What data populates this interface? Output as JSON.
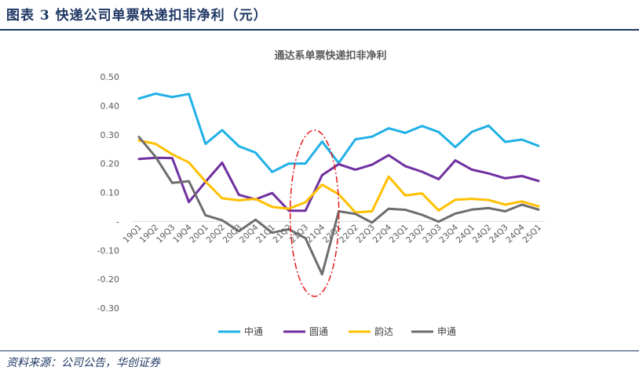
{
  "header": {
    "title": "图表 3   快递公司单票快递扣非净利（元）"
  },
  "footer": {
    "source": "资料来源：公司公告，华创证券"
  },
  "chart_data": {
    "type": "line",
    "title": "通达系单票快递扣非净利",
    "xlabel": "",
    "ylabel": "",
    "ylim": [
      -0.3,
      0.5
    ],
    "y_ticks": [
      0.5,
      0.4,
      0.3,
      0.2,
      0.1,
      0,
      -0.1,
      -0.2,
      -0.3
    ],
    "y_tick_labels": [
      "0.50",
      "0.40",
      "0.30",
      "0.20",
      "0.10",
      "-",
      "-0.10",
      "-0.20",
      "-0.30"
    ],
    "categories": [
      "19Q1",
      "19Q2",
      "19Q3",
      "19Q4",
      "20Q1",
      "20Q2",
      "20Q3",
      "20Q4",
      "21Q1",
      "21Q2",
      "21Q3",
      "21Q4",
      "22Q1",
      "22Q2",
      "22Q3",
      "22Q4",
      "23Q1",
      "23Q2",
      "23Q3",
      "23Q4",
      "24Q1",
      "24Q2",
      "24Q3",
      "24Q4",
      "25Q1"
    ],
    "grid": false,
    "legend_position": "bottom",
    "series": [
      {
        "name": "中通",
        "color": "#1fb0e6",
        "values": [
          0.425,
          0.442,
          0.43,
          0.441,
          0.268,
          0.316,
          0.26,
          0.238,
          0.171,
          0.2,
          0.2,
          0.276,
          0.202,
          0.284,
          0.293,
          0.322,
          0.306,
          0.33,
          0.309,
          0.257,
          0.31,
          0.331,
          0.275,
          0.283,
          0.261
        ]
      },
      {
        "name": "圆通",
        "color": "#7030a0",
        "values": [
          0.216,
          0.22,
          0.219,
          0.067,
          0.137,
          0.203,
          0.092,
          0.076,
          0.098,
          0.037,
          0.037,
          0.16,
          0.198,
          0.179,
          0.196,
          0.229,
          0.191,
          0.172,
          0.146,
          0.211,
          0.179,
          0.166,
          0.149,
          0.157,
          0.14
        ]
      },
      {
        "name": "韵达",
        "color": "#ffc000",
        "values": [
          0.28,
          0.268,
          0.232,
          0.204,
          0.138,
          0.08,
          0.073,
          0.078,
          0.05,
          0.044,
          0.066,
          0.127,
          0.094,
          0.031,
          0.035,
          0.155,
          0.09,
          0.097,
          0.038,
          0.075,
          0.078,
          0.074,
          0.058,
          0.069,
          0.052
        ]
      },
      {
        "name": "申通",
        "color": "#6d6d6d",
        "values": [
          0.292,
          0.223,
          0.133,
          0.139,
          0.021,
          0.004,
          -0.034,
          0.006,
          -0.039,
          -0.027,
          -0.058,
          -0.183,
          0.035,
          0.026,
          -0.004,
          0.044,
          0.04,
          0.023,
          -0.001,
          0.027,
          0.041,
          0.046,
          0.035,
          0.058,
          0.041
        ]
      }
    ],
    "annotations": []
  }
}
